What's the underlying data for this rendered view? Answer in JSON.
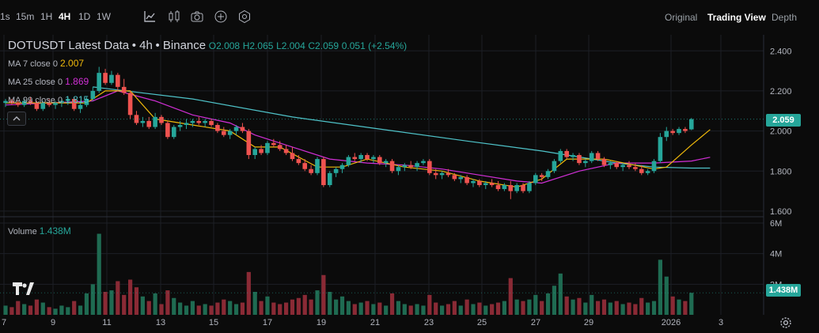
{
  "toolbar": {
    "intervals": [
      {
        "label": "1s",
        "active": false
      },
      {
        "label": "15m",
        "active": false
      },
      {
        "label": "1H",
        "active": false
      },
      {
        "label": "4H",
        "active": true
      },
      {
        "label": "1D",
        "active": false
      },
      {
        "label": "1W",
        "active": false
      }
    ],
    "tools": [
      "indicator-chart-icon",
      "chart-type-icon",
      "camera-icon",
      "add-circle-icon",
      "settings-hex-icon"
    ],
    "view_tabs": [
      {
        "label": "Original",
        "active": false
      },
      {
        "label": "Trading View",
        "active": true
      },
      {
        "label": "Depth",
        "active": false
      }
    ]
  },
  "legend": {
    "symbol": "DOTUSDT Latest Data",
    "interval": "4h",
    "exchange": "Binance",
    "open": "O2.008",
    "high": "H2.065",
    "low": "L2.004",
    "close": "C2.059",
    "change": "0.051 (+2.54%)",
    "ma": [
      {
        "label": "MA 7 close 0",
        "value": "2.007",
        "color": "#f0b90b"
      },
      {
        "label": "MA 25 close 0",
        "value": "1.869",
        "color": "#d12fd6"
      },
      {
        "label": "MA 99 close 0",
        "value": "1.815",
        "color": "#4fc3c9"
      }
    ]
  },
  "volume_legend": {
    "label": "Volume",
    "value": "1.438M"
  },
  "colors": {
    "up": "#26a69a",
    "down": "#ef5350",
    "vol_up": "#1f6b52",
    "vol_down": "#8a2a35",
    "grid": "#1c1f26"
  },
  "price_axis": {
    "ticks": [
      "2.400",
      "2.200",
      "2.000",
      "1.800",
      "1.600"
    ],
    "current": "2.059"
  },
  "volume_axis": {
    "ticks": [
      "6M",
      "4M",
      "2M"
    ],
    "current": "1.438M"
  },
  "time_axis": {
    "labels": [
      "7",
      "9",
      "11",
      "13",
      "15",
      "17",
      "19",
      "21",
      "23",
      "25",
      "27",
      "29",
      "2026",
      "3"
    ]
  },
  "chart_data": {
    "type": "candlestick",
    "ohlc": [
      [
        2.14,
        2.16,
        2.12,
        2.15
      ],
      [
        2.15,
        2.16,
        2.13,
        2.14
      ],
      [
        2.14,
        2.15,
        2.12,
        2.13
      ],
      [
        2.13,
        2.16,
        2.12,
        2.15
      ],
      [
        2.15,
        2.17,
        2.13,
        2.14
      ],
      [
        2.14,
        2.15,
        2.1,
        2.11
      ],
      [
        2.11,
        2.15,
        2.1,
        2.14
      ],
      [
        2.14,
        2.16,
        2.12,
        2.13
      ],
      [
        2.13,
        2.15,
        2.11,
        2.14
      ],
      [
        2.14,
        2.16,
        2.12,
        2.15
      ],
      [
        2.15,
        2.17,
        2.13,
        2.16
      ],
      [
        2.16,
        2.17,
        2.1,
        2.11
      ],
      [
        2.11,
        2.15,
        2.09,
        2.13
      ],
      [
        2.13,
        2.17,
        2.12,
        2.16
      ],
      [
        2.16,
        2.22,
        2.15,
        2.2
      ],
      [
        2.2,
        2.32,
        2.19,
        2.29
      ],
      [
        2.29,
        2.31,
        2.23,
        2.24
      ],
      [
        2.24,
        2.3,
        2.23,
        2.28
      ],
      [
        2.28,
        2.29,
        2.2,
        2.22
      ],
      [
        2.22,
        2.26,
        2.18,
        2.19
      ],
      [
        2.19,
        2.2,
        2.06,
        2.08
      ],
      [
        2.08,
        2.1,
        2.03,
        2.04
      ],
      [
        2.04,
        2.07,
        2.02,
        2.05
      ],
      [
        2.05,
        2.07,
        2.01,
        2.02
      ],
      [
        2.02,
        2.09,
        2.01,
        2.07
      ],
      [
        2.07,
        2.08,
        2.03,
        2.04
      ],
      [
        2.04,
        2.05,
        1.96,
        1.97
      ],
      [
        1.97,
        2.03,
        1.96,
        2.02
      ],
      [
        2.02,
        2.05,
        2.0,
        2.03
      ],
      [
        2.03,
        2.06,
        2.01,
        2.04
      ],
      [
        2.04,
        2.06,
        2.02,
        2.05
      ],
      [
        2.05,
        2.07,
        2.03,
        2.04
      ],
      [
        2.04,
        2.06,
        2.02,
        2.05
      ],
      [
        2.05,
        2.06,
        2.02,
        2.03
      ],
      [
        2.03,
        2.04,
        1.99,
        2.0
      ],
      [
        2.0,
        2.02,
        1.97,
        1.98
      ],
      [
        1.98,
        2.01,
        1.96,
        2.0
      ],
      [
        2.0,
        2.03,
        1.98,
        2.02
      ],
      [
        2.02,
        2.04,
        1.99,
        2.0
      ],
      [
        2.0,
        2.01,
        1.86,
        1.88
      ],
      [
        1.88,
        1.92,
        1.86,
        1.91
      ],
      [
        1.91,
        1.93,
        1.88,
        1.89
      ],
      [
        1.89,
        1.95,
        1.88,
        1.94
      ],
      [
        1.94,
        1.96,
        1.92,
        1.93
      ],
      [
        1.93,
        1.95,
        1.9,
        1.91
      ],
      [
        1.91,
        1.93,
        1.88,
        1.89
      ],
      [
        1.89,
        1.92,
        1.85,
        1.86
      ],
      [
        1.86,
        1.88,
        1.83,
        1.84
      ],
      [
        1.84,
        1.86,
        1.8,
        1.81
      ],
      [
        1.81,
        1.83,
        1.78,
        1.79
      ],
      [
        1.79,
        1.87,
        1.78,
        1.86
      ],
      [
        1.86,
        1.87,
        1.72,
        1.73
      ],
      [
        1.73,
        1.8,
        1.72,
        1.79
      ],
      [
        1.79,
        1.82,
        1.77,
        1.81
      ],
      [
        1.81,
        1.84,
        1.79,
        1.83
      ],
      [
        1.83,
        1.88,
        1.82,
        1.87
      ],
      [
        1.87,
        1.89,
        1.85,
        1.86
      ],
      [
        1.86,
        1.89,
        1.84,
        1.88
      ],
      [
        1.88,
        1.89,
        1.85,
        1.86
      ],
      [
        1.86,
        1.88,
        1.84,
        1.87
      ],
      [
        1.87,
        1.88,
        1.83,
        1.84
      ],
      [
        1.84,
        1.86,
        1.82,
        1.85
      ],
      [
        1.85,
        1.86,
        1.79,
        1.8
      ],
      [
        1.8,
        1.83,
        1.78,
        1.82
      ],
      [
        1.82,
        1.84,
        1.8,
        1.83
      ],
      [
        1.83,
        1.85,
        1.81,
        1.82
      ],
      [
        1.82,
        1.85,
        1.8,
        1.84
      ],
      [
        1.84,
        1.86,
        1.83,
        1.85
      ],
      [
        1.85,
        1.86,
        1.78,
        1.79
      ],
      [
        1.79,
        1.81,
        1.76,
        1.78
      ],
      [
        1.78,
        1.8,
        1.76,
        1.79
      ],
      [
        1.79,
        1.81,
        1.77,
        1.78
      ],
      [
        1.78,
        1.79,
        1.75,
        1.76
      ],
      [
        1.76,
        1.78,
        1.74,
        1.77
      ],
      [
        1.77,
        1.78,
        1.73,
        1.74
      ],
      [
        1.74,
        1.76,
        1.72,
        1.75
      ],
      [
        1.75,
        1.76,
        1.72,
        1.73
      ],
      [
        1.73,
        1.75,
        1.71,
        1.74
      ],
      [
        1.74,
        1.76,
        1.72,
        1.73
      ],
      [
        1.73,
        1.75,
        1.7,
        1.71
      ],
      [
        1.71,
        1.74,
        1.7,
        1.73
      ],
      [
        1.73,
        1.75,
        1.66,
        1.7
      ],
      [
        1.7,
        1.74,
        1.69,
        1.73
      ],
      [
        1.73,
        1.74,
        1.69,
        1.7
      ],
      [
        1.7,
        1.75,
        1.69,
        1.74
      ],
      [
        1.74,
        1.79,
        1.73,
        1.78
      ],
      [
        1.78,
        1.79,
        1.75,
        1.77
      ],
      [
        1.77,
        1.81,
        1.76,
        1.8
      ],
      [
        1.8,
        1.86,
        1.79,
        1.85
      ],
      [
        1.85,
        1.91,
        1.84,
        1.9
      ],
      [
        1.9,
        1.91,
        1.86,
        1.87
      ],
      [
        1.87,
        1.89,
        1.85,
        1.88
      ],
      [
        1.88,
        1.89,
        1.83,
        1.84
      ],
      [
        1.84,
        1.86,
        1.82,
        1.85
      ],
      [
        1.85,
        1.9,
        1.84,
        1.89
      ],
      [
        1.89,
        1.9,
        1.85,
        1.86
      ],
      [
        1.86,
        1.87,
        1.82,
        1.83
      ],
      [
        1.83,
        1.85,
        1.81,
        1.84
      ],
      [
        1.84,
        1.85,
        1.81,
        1.82
      ],
      [
        1.82,
        1.84,
        1.8,
        1.83
      ],
      [
        1.83,
        1.85,
        1.81,
        1.82
      ],
      [
        1.82,
        1.84,
        1.8,
        1.81
      ],
      [
        1.81,
        1.83,
        1.78,
        1.79
      ],
      [
        1.79,
        1.81,
        1.78,
        1.8
      ],
      [
        1.8,
        1.86,
        1.79,
        1.85
      ],
      [
        1.85,
        1.99,
        1.84,
        1.97
      ],
      [
        1.97,
        2.02,
        1.95,
        2.0
      ],
      [
        2.0,
        2.01,
        1.98,
        1.99
      ],
      [
        1.99,
        2.02,
        1.98,
        2.01
      ],
      [
        2.01,
        2.02,
        1.99,
        2.0
      ],
      [
        2.008,
        2.065,
        2.004,
        2.059
      ]
    ],
    "volume_millions": [
      0.6,
      0.5,
      0.9,
      0.7,
      0.6,
      1.0,
      0.8,
      0.5,
      0.4,
      0.6,
      0.5,
      0.9,
      0.6,
      1.4,
      2.0,
      5.3,
      1.5,
      1.6,
      2.2,
      1.3,
      2.3,
      1.8,
      1.2,
      0.9,
      1.4,
      0.7,
      1.6,
      1.1,
      0.8,
      0.6,
      0.9,
      0.6,
      0.7,
      0.6,
      0.8,
      1.0,
      0.9,
      0.7,
      0.8,
      2.8,
      1.5,
      0.9,
      1.2,
      0.8,
      0.7,
      0.8,
      1.0,
      1.1,
      1.3,
      1.0,
      1.6,
      2.6,
      1.5,
      1.0,
      1.2,
      0.9,
      0.7,
      0.8,
      0.9,
      0.7,
      0.8,
      0.6,
      1.4,
      0.9,
      0.7,
      0.6,
      0.7,
      0.6,
      1.3,
      0.8,
      0.6,
      0.7,
      0.9,
      0.6,
      1.0,
      0.7,
      0.8,
      0.6,
      0.7,
      0.8,
      0.9,
      2.4,
      1.0,
      0.9,
      1.0,
      1.3,
      0.9,
      1.4,
      1.9,
      2.7,
      1.2,
      1.0,
      1.1,
      0.8,
      1.3,
      0.9,
      1.0,
      0.8,
      0.9,
      0.7,
      0.8,
      0.7,
      1.1,
      0.8,
      0.9,
      3.6,
      2.5,
      1.2,
      1.0,
      0.9,
      1.438
    ],
    "ma7_points": [
      [
        0,
        2.14
      ],
      [
        13,
        2.14
      ],
      [
        16,
        2.2
      ],
      [
        20,
        2.2
      ],
      [
        24,
        2.06
      ],
      [
        30,
        2.03
      ],
      [
        36,
        2.0
      ],
      [
        40,
        1.92
      ],
      [
        44,
        1.92
      ],
      [
        50,
        1.82
      ],
      [
        54,
        1.82
      ],
      [
        58,
        1.86
      ],
      [
        64,
        1.82
      ],
      [
        70,
        1.8
      ],
      [
        76,
        1.75
      ],
      [
        82,
        1.72
      ],
      [
        86,
        1.76
      ],
      [
        90,
        1.86
      ],
      [
        96,
        1.86
      ],
      [
        104,
        1.81
      ],
      [
        106,
        1.82
      ],
      [
        110,
        1.93
      ],
      [
        113,
        2.007
      ]
    ],
    "ma25_points": [
      [
        0,
        2.13
      ],
      [
        14,
        2.15
      ],
      [
        18,
        2.2
      ],
      [
        24,
        2.15
      ],
      [
        30,
        2.08
      ],
      [
        36,
        2.04
      ],
      [
        40,
        1.98
      ],
      [
        46,
        1.92
      ],
      [
        52,
        1.86
      ],
      [
        58,
        1.84
      ],
      [
        64,
        1.83
      ],
      [
        70,
        1.81
      ],
      [
        76,
        1.78
      ],
      [
        82,
        1.75
      ],
      [
        86,
        1.74
      ],
      [
        92,
        1.8
      ],
      [
        98,
        1.84
      ],
      [
        104,
        1.84
      ],
      [
        110,
        1.85
      ],
      [
        113,
        1.869
      ]
    ],
    "ma99_points": [
      [
        14,
        2.22
      ],
      [
        30,
        2.16
      ],
      [
        46,
        2.07
      ],
      [
        60,
        2.01
      ],
      [
        74,
        1.95
      ],
      [
        86,
        1.9
      ],
      [
        92,
        1.87
      ],
      [
        98,
        1.84
      ],
      [
        104,
        1.82
      ],
      [
        110,
        1.815
      ],
      [
        113,
        1.815
      ]
    ],
    "price_range": [
      1.58,
      2.48
    ],
    "volume_range": [
      0,
      6
    ]
  }
}
